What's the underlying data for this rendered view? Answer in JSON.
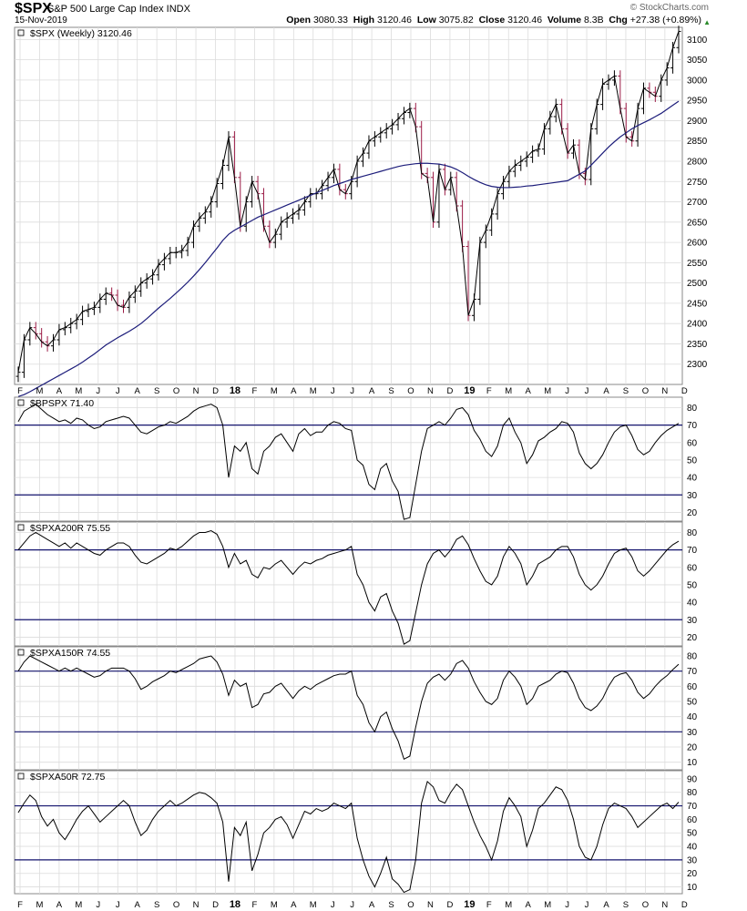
{
  "header": {
    "symbol": "$SPX",
    "name": "S&P 500 Large Cap Index INDX",
    "date": "15-Nov-2019",
    "brand": "© StockCharts.com",
    "open_label": "Open",
    "open": "3080.33",
    "high_label": "High",
    "high": "3120.46",
    "low_label": "Low",
    "low": "3075.82",
    "close_label": "Close",
    "close": "3120.46",
    "volume_label": "Volume",
    "volume": "8.3B",
    "chg_label": "Chg",
    "chg": "+27.38 (+0.89%)"
  },
  "colors": {
    "up": "#000000",
    "down": "#9b1b46",
    "ma": "#1c1c7a",
    "grid": "#dcdcdc",
    "ref": "#14146e"
  },
  "x_axis": [
    "F",
    "M",
    "A",
    "M",
    "J",
    "J",
    "A",
    "S",
    "O",
    "N",
    "D",
    "18",
    "F",
    "M",
    "A",
    "M",
    "J",
    "J",
    "A",
    "S",
    "O",
    "N",
    "D",
    "19",
    "F",
    "M",
    "A",
    "M",
    "J",
    "J",
    "A",
    "S",
    "O",
    "N",
    "D"
  ],
  "chart_data": [
    {
      "type": "line",
      "title": "$SPX (Weekly) 3120.46",
      "ylim": [
        2250,
        3130
      ],
      "yticks": [
        2300,
        2350,
        2400,
        2450,
        2500,
        2550,
        2600,
        2650,
        2700,
        2750,
        2800,
        2850,
        2900,
        2950,
        3000,
        3050,
        3100
      ],
      "series": [
        {
          "values": [
            2280,
            2360,
            2390,
            2375,
            2355,
            2345,
            2360,
            2385,
            2390,
            2400,
            2410,
            2430,
            2435,
            2440,
            2460,
            2475,
            2470,
            2445,
            2440,
            2465,
            2480,
            2500,
            2510,
            2520,
            2545,
            2560,
            2575,
            2575,
            2580,
            2600,
            2640,
            2660,
            2675,
            2700,
            2745,
            2790,
            2860,
            2760,
            2640,
            2700,
            2750,
            2720,
            2640,
            2600,
            2620,
            2650,
            2660,
            2670,
            2680,
            2700,
            2720,
            2720,
            2740,
            2760,
            2780,
            2730,
            2720,
            2750,
            2800,
            2820,
            2850,
            2860,
            2870,
            2880,
            2890,
            2905,
            2920,
            2930,
            2885,
            2770,
            2760,
            2650,
            2780,
            2730,
            2760,
            2690,
            2590,
            2420,
            2460,
            2600,
            2630,
            2670,
            2720,
            2750,
            2775,
            2790,
            2800,
            2810,
            2825,
            2830,
            2880,
            2910,
            2940,
            2880,
            2820,
            2840,
            2770,
            2755,
            2880,
            2940,
            2990,
            3000,
            3010,
            2930,
            2860,
            2850,
            2930,
            2980,
            2970,
            2960,
            3000,
            3030,
            3080,
            3120
          ]
        },
        {
          "name": "MA",
          "values": [
            2220,
            2225,
            2232,
            2240,
            2248,
            2256,
            2264,
            2272,
            2280,
            2288,
            2296,
            2305,
            2315,
            2325,
            2336,
            2347,
            2356,
            2365,
            2373,
            2381,
            2390,
            2400,
            2412,
            2425,
            2438,
            2450,
            2462,
            2475,
            2488,
            2502,
            2517,
            2533,
            2550,
            2568,
            2586,
            2605,
            2620,
            2630,
            2638,
            2646,
            2654,
            2662,
            2668,
            2674,
            2680,
            2686,
            2692,
            2698,
            2704,
            2710,
            2716,
            2722,
            2728,
            2734,
            2740,
            2745,
            2750,
            2755,
            2759,
            2763,
            2767,
            2771,
            2775,
            2779,
            2783,
            2787,
            2790,
            2792,
            2794,
            2795,
            2795,
            2794,
            2793,
            2790,
            2786,
            2780,
            2772,
            2763,
            2755,
            2748,
            2742,
            2738,
            2736,
            2735,
            2735,
            2736,
            2737,
            2739,
            2740,
            2742,
            2744,
            2746,
            2748,
            2750,
            2752,
            2760,
            2768,
            2776,
            2790,
            2805,
            2820,
            2835,
            2848,
            2860,
            2870,
            2880,
            2888,
            2895,
            2902,
            2910,
            2918,
            2928,
            2938,
            2948
          ]
        }
      ]
    },
    {
      "type": "line",
      "title": "$BPSPX 71.40",
      "ylim": [
        15,
        86
      ],
      "yticks": [
        20,
        30,
        40,
        50,
        60,
        70,
        80
      ],
      "reference_lines": [
        30,
        70
      ],
      "series": [
        {
          "values": [
            72,
            78,
            80,
            82,
            79,
            76,
            74,
            72,
            73,
            71,
            74,
            73,
            70,
            68,
            69,
            72,
            73,
            74,
            75,
            74,
            70,
            66,
            65,
            67,
            69,
            70,
            72,
            71,
            73,
            75,
            78,
            80,
            81,
            82,
            80,
            70,
            40,
            58,
            55,
            60,
            45,
            42,
            55,
            58,
            63,
            65,
            60,
            55,
            65,
            68,
            64,
            66,
            66,
            70,
            72,
            71,
            68,
            67,
            50,
            47,
            36,
            33,
            45,
            48,
            38,
            32,
            16,
            17,
            36,
            55,
            68,
            70,
            72,
            70,
            74,
            79,
            80,
            76,
            67,
            62,
            55,
            52,
            58,
            70,
            74,
            66,
            60,
            48,
            53,
            61,
            63,
            66,
            68,
            72,
            71,
            66,
            54,
            48,
            45,
            48,
            53,
            60,
            66,
            69,
            70,
            64,
            56,
            53,
            55,
            60,
            64,
            67,
            69,
            71
          ]
        }
      ]
    },
    {
      "type": "line",
      "title": "$SPXA200R 75.55",
      "ylim": [
        15,
        86
      ],
      "yticks": [
        20,
        30,
        40,
        50,
        60,
        70,
        80
      ],
      "reference_lines": [
        30,
        70
      ],
      "series": [
        {
          "values": [
            70,
            74,
            78,
            80,
            78,
            76,
            74,
            72,
            74,
            71,
            74,
            72,
            70,
            68,
            67,
            70,
            72,
            74,
            74,
            72,
            67,
            63,
            62,
            64,
            66,
            68,
            71,
            70,
            72,
            75,
            78,
            80,
            80,
            81,
            79,
            72,
            60,
            68,
            62,
            64,
            56,
            54,
            60,
            59,
            62,
            64,
            60,
            56,
            60,
            63,
            62,
            64,
            65,
            67,
            68,
            69,
            70,
            72,
            56,
            50,
            40,
            35,
            43,
            45,
            35,
            28,
            16,
            18,
            34,
            50,
            62,
            68,
            70,
            66,
            70,
            76,
            78,
            73,
            65,
            58,
            52,
            50,
            55,
            66,
            72,
            68,
            62,
            50,
            55,
            62,
            64,
            66,
            70,
            72,
            72,
            66,
            56,
            50,
            47,
            50,
            55,
            62,
            68,
            70,
            71,
            66,
            58,
            55,
            58,
            62,
            66,
            70,
            73,
            75
          ]
        }
      ]
    },
    {
      "type": "line",
      "title": "$SPXA150R 74.55",
      "ylim": [
        5,
        86
      ],
      "yticks": [
        10,
        20,
        30,
        40,
        50,
        60,
        70,
        80
      ],
      "reference_lines": [
        30,
        70
      ],
      "series": [
        {
          "values": [
            70,
            76,
            80,
            78,
            76,
            74,
            72,
            70,
            72,
            70,
            72,
            70,
            68,
            66,
            67,
            70,
            72,
            72,
            72,
            70,
            65,
            58,
            60,
            63,
            65,
            67,
            70,
            69,
            71,
            73,
            75,
            78,
            79,
            80,
            76,
            68,
            54,
            64,
            60,
            62,
            46,
            48,
            55,
            56,
            60,
            62,
            57,
            52,
            57,
            60,
            58,
            61,
            63,
            65,
            67,
            68,
            68,
            70,
            54,
            48,
            36,
            30,
            40,
            43,
            32,
            24,
            12,
            14,
            33,
            50,
            62,
            66,
            68,
            64,
            68,
            75,
            77,
            72,
            63,
            56,
            50,
            48,
            52,
            64,
            70,
            66,
            60,
            48,
            52,
            60,
            62,
            64,
            68,
            70,
            69,
            62,
            52,
            46,
            44,
            47,
            52,
            60,
            66,
            68,
            69,
            64,
            56,
            52,
            55,
            60,
            64,
            67,
            71,
            74.55
          ]
        }
      ]
    },
    {
      "type": "line",
      "title": "$SPXA50R 72.75",
      "ylim": [
        5,
        96
      ],
      "yticks": [
        10,
        20,
        30,
        40,
        50,
        60,
        70,
        80,
        90
      ],
      "reference_lines": [
        30,
        70
      ],
      "series": [
        {
          "values": [
            65,
            72,
            78,
            74,
            62,
            55,
            60,
            50,
            45,
            52,
            60,
            66,
            70,
            64,
            58,
            62,
            66,
            70,
            74,
            70,
            58,
            48,
            52,
            60,
            66,
            70,
            74,
            70,
            72,
            75,
            78,
            80,
            79,
            76,
            72,
            58,
            14,
            54,
            48,
            58,
            22,
            34,
            50,
            54,
            60,
            62,
            56,
            46,
            56,
            66,
            64,
            68,
            66,
            68,
            72,
            70,
            68,
            72,
            46,
            30,
            18,
            10,
            20,
            32,
            16,
            12,
            6,
            8,
            30,
            72,
            88,
            84,
            74,
            72,
            80,
            86,
            82,
            70,
            58,
            48,
            40,
            30,
            44,
            66,
            76,
            70,
            62,
            40,
            52,
            68,
            72,
            78,
            84,
            82,
            74,
            60,
            40,
            32,
            30,
            40,
            56,
            68,
            72,
            70,
            68,
            62,
            54,
            58,
            62,
            66,
            70,
            72,
            68,
            72.75
          ]
        }
      ]
    }
  ]
}
